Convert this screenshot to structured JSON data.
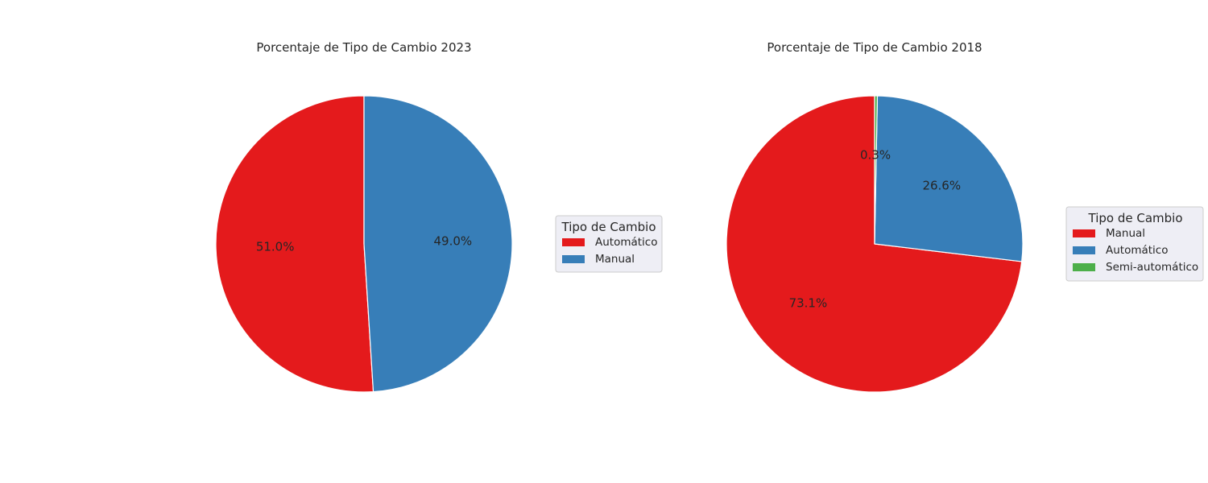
{
  "chart_data": [
    {
      "type": "pie",
      "title": "Porcentaje de Tipo de Cambio 2023",
      "legend_title": "Tipo de Cambio",
      "legend_position": "right",
      "start_angle_deg": 90,
      "direction": "counterclockwise",
      "slices": [
        {
          "label": "Automático",
          "value": 51.0,
          "pct_label": "51.0%",
          "color": "#e41a1c"
        },
        {
          "label": "Manual",
          "value": 49.0,
          "pct_label": "49.0%",
          "color": "#377eb8"
        }
      ]
    },
    {
      "type": "pie",
      "title": "Porcentaje de Tipo de Cambio 2018",
      "legend_title": "Tipo de Cambio",
      "legend_position": "right",
      "start_angle_deg": 90,
      "direction": "counterclockwise",
      "slices": [
        {
          "label": "Manual",
          "value": 73.1,
          "pct_label": "73.1%",
          "color": "#e41a1c"
        },
        {
          "label": "Automático",
          "value": 26.6,
          "pct_label": "26.6%",
          "color": "#377eb8"
        },
        {
          "label": "Semi-automático",
          "value": 0.3,
          "pct_label": "0.3%",
          "color": "#4daf4a"
        }
      ]
    }
  ]
}
